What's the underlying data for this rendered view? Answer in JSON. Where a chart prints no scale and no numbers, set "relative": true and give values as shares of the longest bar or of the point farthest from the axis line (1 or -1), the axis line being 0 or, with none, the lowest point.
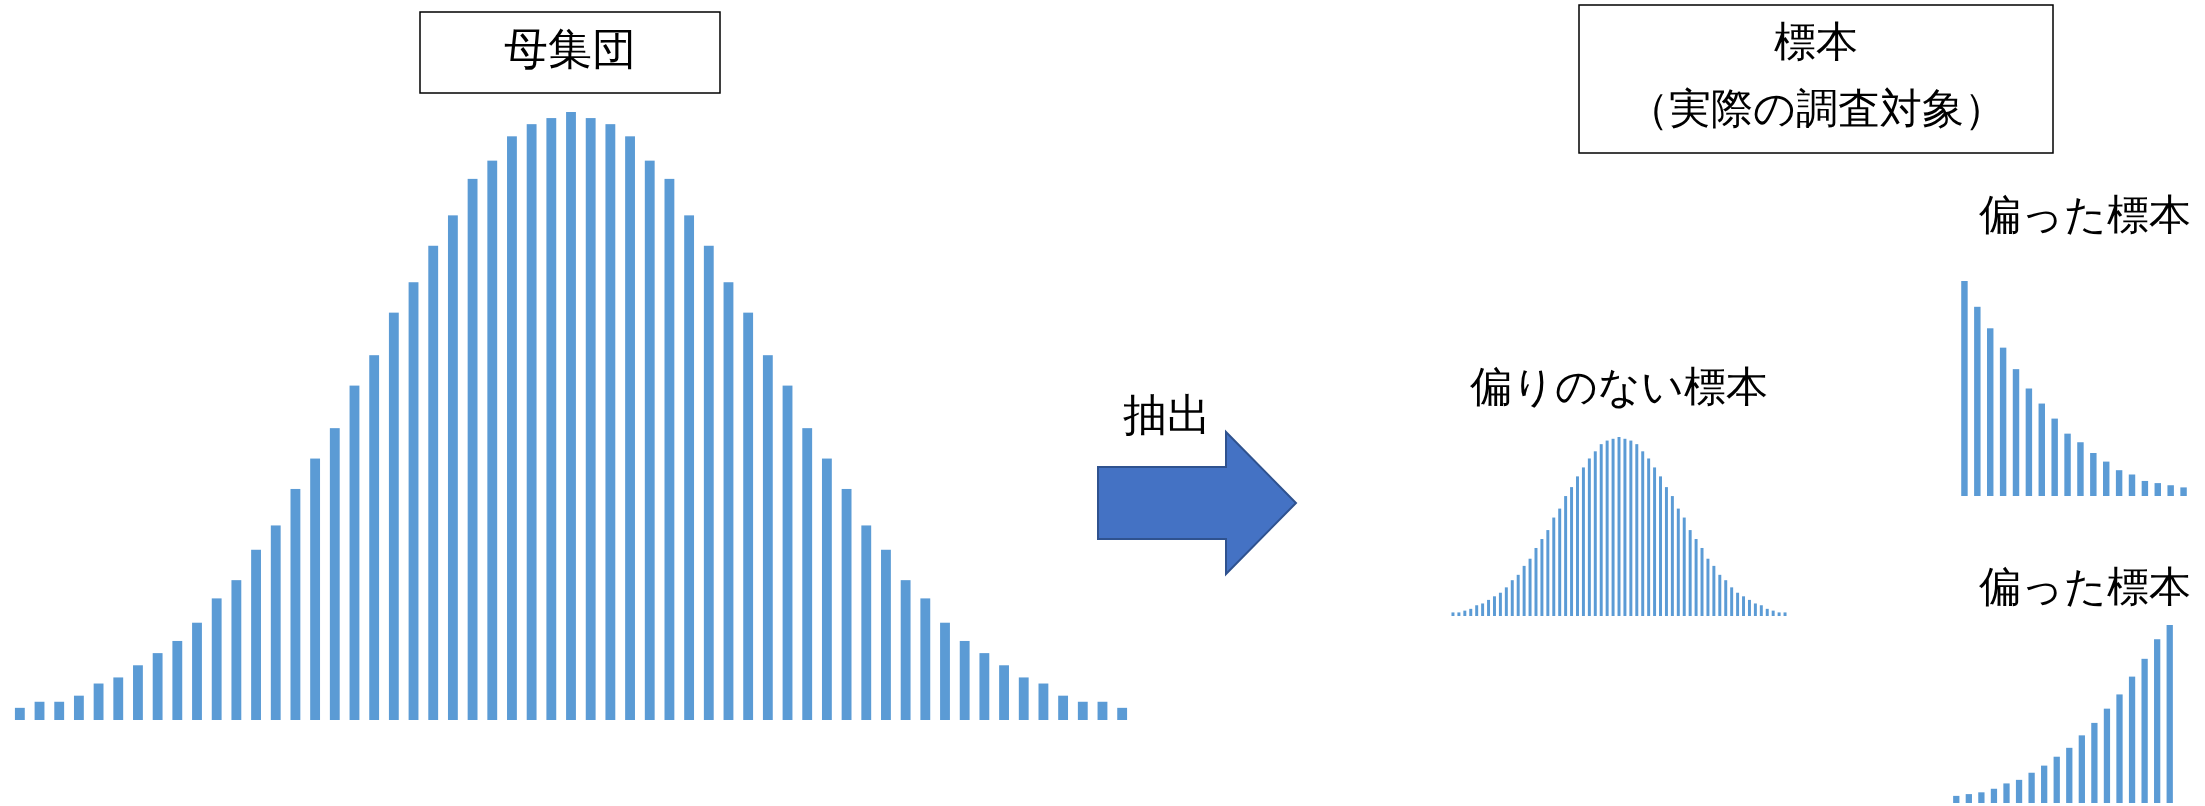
{
  "chart_data": [
    {
      "type": "bar",
      "title": "母集団",
      "relative": true,
      "color": "#5b9bd5",
      "annotations": [
        "抽出"
      ],
      "categories": [
        null,
        null,
        null,
        null,
        null,
        null,
        null,
        null,
        null,
        null,
        null,
        null,
        null,
        null,
        null,
        null,
        null,
        null,
        null,
        null,
        null,
        null,
        null,
        null,
        null,
        null,
        null,
        null,
        null,
        null,
        null,
        null,
        null,
        null,
        null,
        null,
        null,
        null,
        null,
        null,
        null,
        null,
        null,
        null,
        null,
        null,
        null,
        null,
        null,
        null,
        null,
        null,
        null,
        null,
        null,
        null,
        null
      ],
      "values": [
        0.02,
        0.03,
        0.03,
        0.04,
        0.06,
        0.07,
        0.09,
        0.11,
        0.13,
        0.16,
        0.2,
        0.23,
        0.28,
        0.32,
        0.38,
        0.43,
        0.48,
        0.55,
        0.6,
        0.67,
        0.72,
        0.78,
        0.83,
        0.89,
        0.92,
        0.96,
        0.98,
        0.99,
        1,
        0.99,
        0.98,
        0.96,
        0.92,
        0.89,
        0.83,
        0.78,
        0.72,
        0.67,
        0.6,
        0.55,
        0.48,
        0.43,
        0.38,
        0.32,
        0.28,
        0.23,
        0.2,
        0.16,
        0.13,
        0.11,
        0.09,
        0.07,
        0.06,
        0.04,
        0.03,
        0.03,
        0.02
      ]
    },
    {
      "type": "other",
      "title": "標本",
      "subtitle": "（実際の調査対象）"
    },
    {
      "type": "bar",
      "title": "偏りのない標本",
      "relative": true,
      "color": "#5b9bd5",
      "categories": [
        null,
        null,
        null,
        null,
        null,
        null,
        null,
        null,
        null,
        null,
        null,
        null,
        null,
        null,
        null,
        null,
        null,
        null,
        null,
        null,
        null,
        null,
        null,
        null,
        null,
        null,
        null,
        null,
        null,
        null,
        null,
        null,
        null,
        null,
        null,
        null,
        null,
        null,
        null,
        null,
        null,
        null,
        null,
        null,
        null,
        null,
        null,
        null,
        null,
        null,
        null,
        null,
        null,
        null,
        null,
        null,
        null
      ],
      "values": [
        0.02,
        0.02,
        0.03,
        0.04,
        0.06,
        0.07,
        0.09,
        0.11,
        0.13,
        0.16,
        0.2,
        0.23,
        0.28,
        0.32,
        0.38,
        0.43,
        0.48,
        0.55,
        0.6,
        0.67,
        0.72,
        0.78,
        0.83,
        0.88,
        0.92,
        0.96,
        0.98,
        0.99,
        1,
        0.99,
        0.98,
        0.96,
        0.92,
        0.88,
        0.83,
        0.78,
        0.72,
        0.67,
        0.6,
        0.55,
        0.48,
        0.43,
        0.38,
        0.32,
        0.28,
        0.23,
        0.2,
        0.16,
        0.13,
        0.11,
        0.09,
        0.07,
        0.06,
        0.04,
        0.03,
        0.02,
        0.02
      ]
    },
    {
      "type": "bar",
      "title": "偏った標本",
      "relative": true,
      "color": "#5b9bd5",
      "categories": [
        null,
        null,
        null,
        null,
        null,
        null,
        null,
        null,
        null,
        null,
        null,
        null,
        null,
        null,
        null,
        null,
        null,
        null
      ],
      "values": [
        1,
        0.88,
        0.78,
        0.69,
        0.59,
        0.5,
        0.43,
        0.36,
        0.29,
        0.25,
        0.2,
        0.16,
        0.12,
        0.1,
        0.07,
        0.06,
        0.05,
        0.04
      ]
    },
    {
      "type": "bar",
      "title": "偏った標本",
      "relative": true,
      "color": "#5b9bd5",
      "categories": [
        null,
        null,
        null,
        null,
        null,
        null,
        null,
        null,
        null,
        null,
        null,
        null,
        null,
        null,
        null,
        null,
        null,
        null
      ],
      "values": [
        0.04,
        0.05,
        0.06,
        0.08,
        0.11,
        0.13,
        0.17,
        0.21,
        0.26,
        0.31,
        0.38,
        0.45,
        0.53,
        0.61,
        0.71,
        0.81,
        0.92,
        1
      ]
    }
  ]
}
